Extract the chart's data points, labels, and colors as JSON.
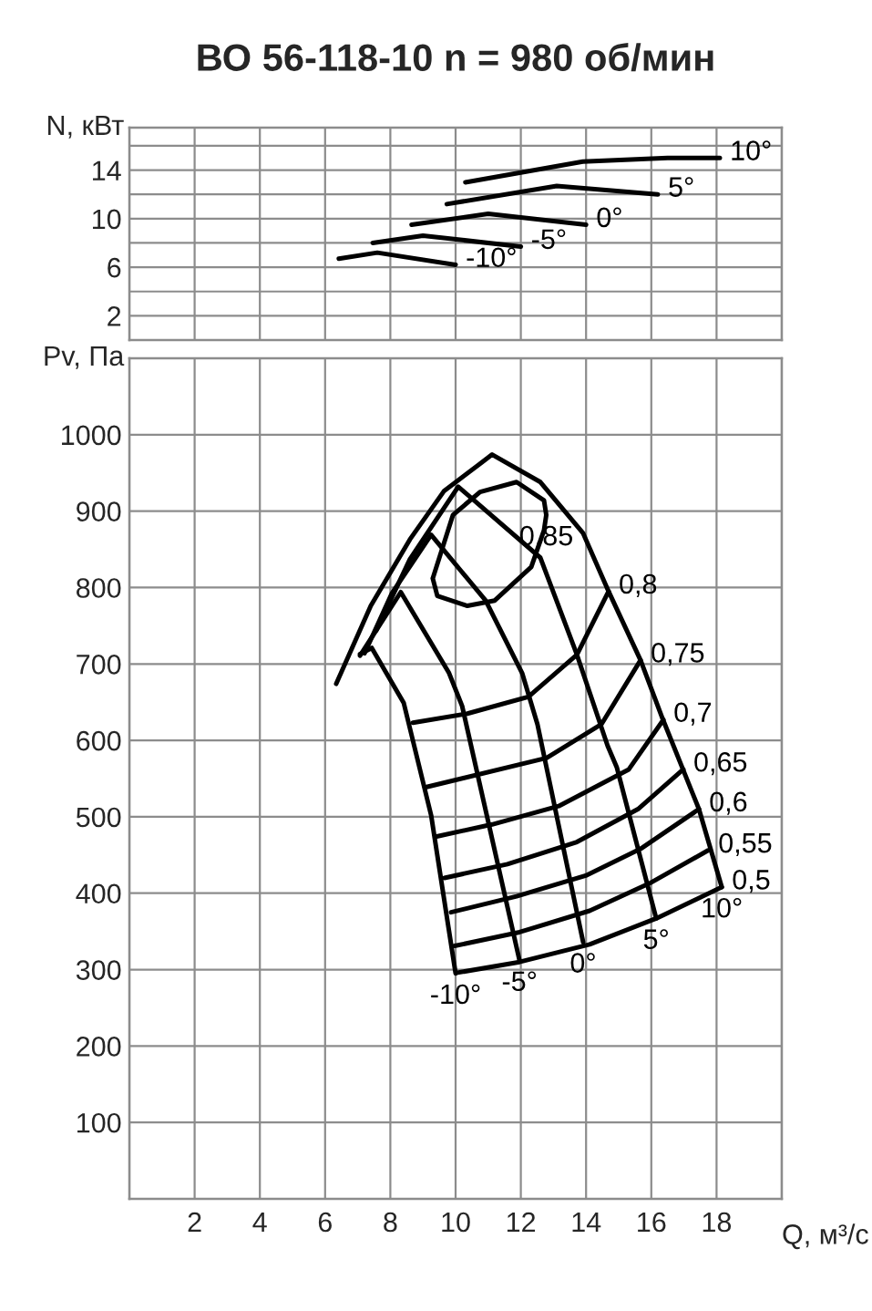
{
  "chart_data": [
    {
      "type": "line",
      "title": "ВО 56-118-10 n = 980 об/мин",
      "ylabel": "N, кВт",
      "xlim": [
        0,
        20
      ],
      "ylim": [
        0,
        17.5
      ],
      "xticks": [
        {
          "value": 0,
          "label": null
        },
        {
          "value": 2,
          "label": null
        },
        {
          "value": 4,
          "label": null
        },
        {
          "value": 6,
          "label": null
        },
        {
          "value": 8,
          "label": null
        },
        {
          "value": 10,
          "label": null
        },
        {
          "value": 12,
          "label": null
        },
        {
          "value": 14,
          "label": null
        },
        {
          "value": 16,
          "label": null
        },
        {
          "value": 18,
          "label": null
        },
        {
          "value": 20,
          "label": null
        }
      ],
      "yticks": [
        {
          "value": 0,
          "label": null
        },
        2,
        {
          "value": 4,
          "label": null
        },
        6,
        {
          "value": 8,
          "label": null
        },
        10,
        {
          "value": 12,
          "label": null
        },
        14,
        {
          "value": 16,
          "label": null
        }
      ],
      "tick_labels": "y",
      "grid": true,
      "series": [
        {
          "name": "-10°",
          "color": "#000000",
          "x": [
            6.42,
            7.6,
            10.0
          ],
          "values": [
            6.7,
            7.2,
            6.2
          ]
        },
        {
          "name": "-5°",
          "color": "#000000",
          "x": [
            7.46,
            9.0,
            12.0
          ],
          "values": [
            8.0,
            8.6,
            7.7
          ]
        },
        {
          "name": "0°",
          "color": "#000000",
          "x": [
            8.65,
            11.0,
            14.0
          ],
          "values": [
            9.5,
            10.4,
            9.5
          ]
        },
        {
          "name": "5°",
          "color": "#000000",
          "x": [
            9.73,
            13.1,
            16.2
          ],
          "values": [
            11.2,
            12.7,
            12.0
          ]
        },
        {
          "name": "10°",
          "color": "#000000",
          "x": [
            10.3,
            13.9,
            16.5,
            18.1
          ],
          "values": [
            13.0,
            14.7,
            15.0,
            15.0
          ]
        }
      ]
    },
    {
      "type": "line",
      "ylabel": "Pv, Па",
      "xlabel": "Q, м³/с",
      "xlim": [
        0,
        20
      ],
      "ylim": [
        0,
        1100
      ],
      "xticks": [
        {
          "value": 0,
          "label": null
        },
        2,
        4,
        6,
        8,
        10,
        12,
        14,
        16,
        18,
        {
          "value": 20,
          "label": null
        }
      ],
      "yticks": [
        {
          "value": 0,
          "label": null
        },
        100,
        200,
        300,
        400,
        500,
        600,
        700,
        800,
        900,
        1000
      ],
      "grid": true,
      "series": [
        {
          "name": "10°",
          "color": "#000000",
          "x": [
            6.34,
            7.4,
            8.6,
            9.64,
            11.12,
            12.6,
            13.91,
            14.69,
            15.67,
            16.34,
            17.46,
            18.16
          ],
          "values": [
            674,
            776,
            863,
            926,
            974,
            938,
            871,
            795,
            705,
            629,
            510,
            408
          ]
        },
        {
          "name": "5°",
          "color": "#000000",
          "x": [
            7.57,
            8.6,
            10.08,
            12.6,
            13.72,
            14.66,
            14.94,
            16.15
          ],
          "values": [
            744,
            837,
            932,
            839,
            712,
            593,
            565,
            367
          ]
        },
        {
          "name": "0°",
          "color": "#000000",
          "x": [
            7.21,
            8.04,
            9.25,
            10.92,
            12.04,
            12.51,
            13.91
          ],
          "values": [
            714,
            792,
            869,
            783,
            688,
            621,
            336
          ]
        },
        {
          "name": "-5°",
          "color": "#000000",
          "x": [
            7.07,
            8.32,
            9.8,
            10.2,
            11.96
          ],
          "values": [
            711,
            794,
            688,
            645,
            312
          ]
        },
        {
          "name": "-10°",
          "color": "#000000",
          "x": [
            7.07,
            7.43,
            8.41,
            9.25,
            10.0
          ],
          "values": [
            713,
            721,
            649,
            502,
            295
          ]
        },
        {
          "name": "0,85",
          "color": "#000000",
          "x": [
            9.3,
            9.44,
            10.36,
            11.2,
            12.32,
            12.71,
            12.78,
            null,
            9.3,
            9.92,
            10.75,
            11.87,
            12.71,
            12.78
          ],
          "values": [
            812,
            789,
            776,
            783,
            827,
            875,
            895,
            null,
            812,
            895,
            925,
            938,
            914,
            895
          ]
        },
        {
          "name": "0,8",
          "color": "#000000",
          "x": [
            8.69,
            10.36,
            12.23,
            13.72,
            14.69
          ],
          "values": [
            623,
            635,
            657,
            712,
            795
          ]
        },
        {
          "name": "0,75",
          "color": "#000000",
          "x": [
            9.11,
            12.79,
            14.47,
            15.67
          ],
          "values": [
            539,
            577,
            621,
            705
          ]
        },
        {
          "name": "0,7",
          "color": "#000000",
          "x": [
            9.39,
            11.12,
            13.16,
            15.31,
            16.37
          ],
          "values": [
            474,
            490,
            514,
            562,
            627
          ]
        },
        {
          "name": "0,65",
          "color": "#000000",
          "x": [
            9.66,
            11.59,
            13.72,
            15.59,
            16.98
          ],
          "values": [
            420,
            438,
            467,
            510,
            562
          ]
        },
        {
          "name": "0,6",
          "color": "#000000",
          "x": [
            9.86,
            11.87,
            13.99,
            15.67,
            17.46
          ],
          "values": [
            375,
            396,
            423,
            458,
            510
          ]
        },
        {
          "name": "0,55",
          "color": "#000000",
          "x": [
            9.97,
            11.96,
            14.11,
            15.95,
            17.74
          ],
          "values": [
            331,
            349,
            377,
            413,
            456
          ]
        },
        {
          "name": "0,5",
          "color": "#000000",
          "x": [
            10.06,
            11.96,
            14.11,
            16.15,
            18.16
          ],
          "values": [
            296,
            310,
            333,
            367,
            408
          ]
        }
      ]
    }
  ]
}
